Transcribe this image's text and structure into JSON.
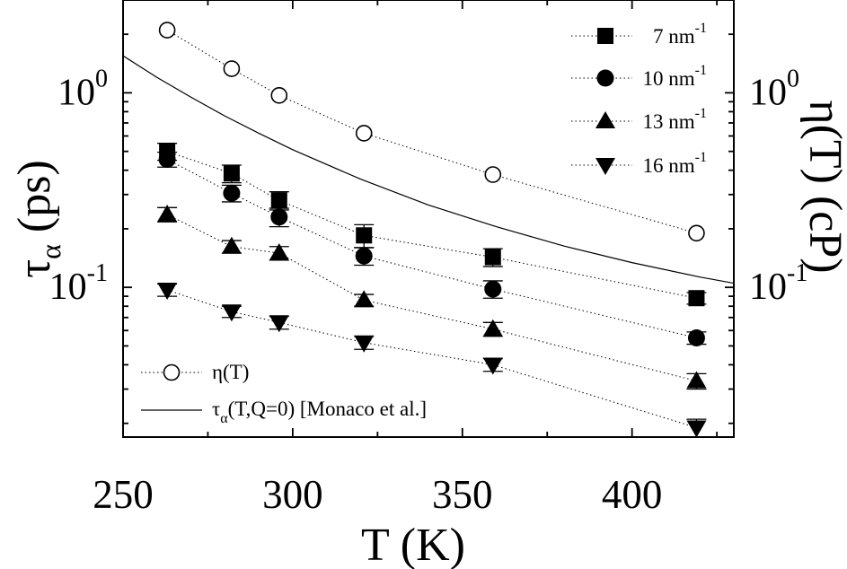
{
  "chart_data": {
    "type": "scatter",
    "xlabel": "T  (K)",
    "ylabel_left": {
      "main": "τ",
      "sub": "α",
      "rest": "  (ps)"
    },
    "ylabel_right": "η(T)  (cP)",
    "xlim": [
      250,
      430
    ],
    "ylim": [
      0.017,
      3.0
    ],
    "yscale": "log",
    "x_ticks": [
      250,
      300,
      350,
      400
    ],
    "x_tick_labels": [
      "250",
      "300",
      "350",
      "400"
    ],
    "y_ticks": [
      {
        "value": 1,
        "base": "10",
        "exp": "0"
      },
      {
        "value": 0.1,
        "base": "10",
        "exp": "-1"
      }
    ],
    "y_right_ticks": [
      {
        "value": 1,
        "base": "10",
        "exp": "0"
      },
      {
        "value": 0.1,
        "base": "10",
        "exp": "-1"
      }
    ],
    "grid": false,
    "series": [
      {
        "name": "7 nm",
        "name_sup": "-1",
        "marker": "square",
        "x": [
          263,
          282,
          296,
          321,
          359,
          419
        ],
        "y": [
          0.5,
          0.385,
          0.28,
          0.185,
          0.143,
          0.088
        ],
        "err": [
          0.05,
          0.04,
          0.03,
          0.025,
          0.015,
          0.006
        ]
      },
      {
        "name": "10 nm",
        "name_sup": "-1",
        "marker": "circle",
        "x": [
          263,
          282,
          296,
          321,
          359,
          419
        ],
        "y": [
          0.455,
          0.305,
          0.23,
          0.145,
          0.098,
          0.055
        ],
        "err": [
          0.04,
          0.03,
          0.025,
          0.015,
          0.01,
          0.004
        ]
      },
      {
        "name": "13 nm",
        "name_sup": "-1",
        "marker": "triangle-up",
        "x": [
          263,
          282,
          296,
          321,
          359,
          419
        ],
        "y": [
          0.237,
          0.162,
          0.15,
          0.086,
          0.061,
          0.033
        ],
        "err": [
          0.02,
          0.012,
          0.012,
          0.006,
          0.005,
          0.003
        ]
      },
      {
        "name": "16 nm",
        "name_sup": "-1",
        "marker": "triangle-down",
        "x": [
          263,
          282,
          296,
          321,
          359,
          419
        ],
        "y": [
          0.097,
          0.075,
          0.066,
          0.052,
          0.04,
          0.019
        ],
        "err": [
          0.007,
          0.005,
          0.005,
          0.004,
          0.003,
          0.002
        ]
      },
      {
        "name": "η(T)",
        "marker": "open-circle",
        "x": [
          263,
          282,
          296,
          321,
          359,
          419
        ],
        "y": [
          2.1,
          1.33,
          0.97,
          0.62,
          0.38,
          0.19
        ]
      },
      {
        "name": "τ",
        "name_sub": "α",
        "name_rest": "(T,Q=0) [Monaco et al.]",
        "marker": "none",
        "line": "solid",
        "x": [
          250,
          260,
          270,
          280,
          290,
          300,
          320,
          340,
          360,
          380,
          400,
          420,
          430
        ],
        "y": [
          1.55,
          1.2,
          0.95,
          0.76,
          0.62,
          0.51,
          0.36,
          0.265,
          0.205,
          0.163,
          0.134,
          0.113,
          0.105
        ]
      }
    ],
    "legend_position": [
      "top-right",
      "bottom-left"
    ]
  }
}
